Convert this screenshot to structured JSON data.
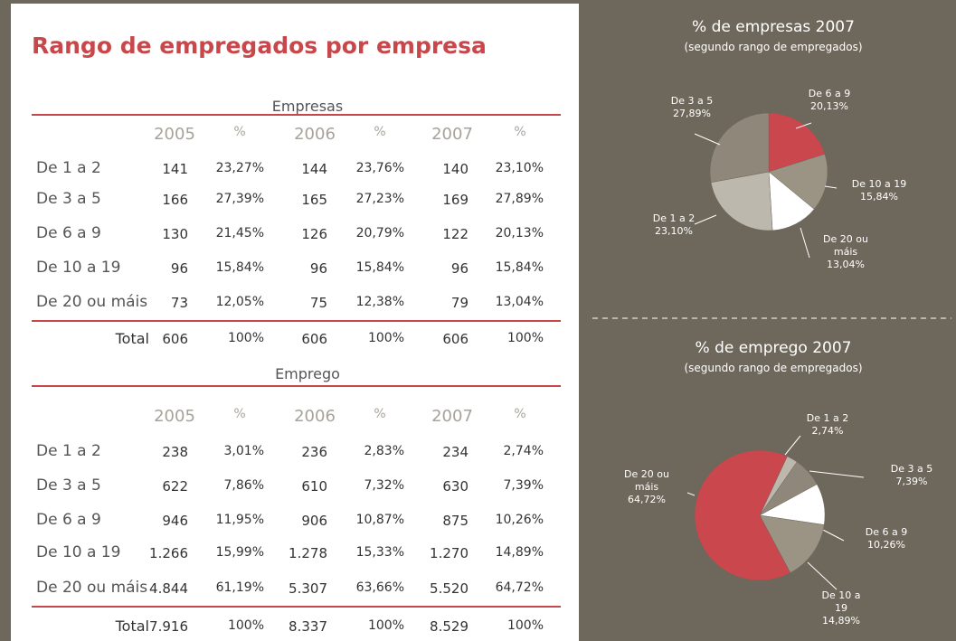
{
  "title": "Rango de empregados por empresa",
  "tables": [
    {
      "title": "Empresas",
      "header": [
        "2005",
        "%",
        "2006",
        "%",
        "2007",
        "%"
      ],
      "rows": [
        [
          "De 1 a 2",
          "141",
          "23,27%",
          "144",
          "23,76%",
          "140",
          "23,10%"
        ],
        [
          "De 3 a 5",
          "166",
          "27,39%",
          "165",
          "27,23%",
          "169",
          "27,89%"
        ],
        [
          "De 6 a 9",
          "130",
          "21,45%",
          "126",
          "20,79%",
          "122",
          "20,13%"
        ],
        [
          "De 10 a 19",
          "96",
          "15,84%",
          "96",
          "15,84%",
          "96",
          "15,84%"
        ],
        [
          "De 20 ou máis",
          "73",
          "12,05%",
          "75",
          "12,38%",
          "79",
          "13,04%"
        ]
      ],
      "total": [
        "Total",
        "606",
        "100%",
        "606",
        "100%",
        "606",
        "100%"
      ]
    },
    {
      "title": "Emprego",
      "header": [
        "2005",
        "%",
        "2006",
        "%",
        "2007",
        "%"
      ],
      "rows": [
        [
          "De 1 a 2",
          "238",
          "3,01%",
          "236",
          "2,83%",
          "234",
          "2,74%"
        ],
        [
          "De 3 a 5",
          "622",
          "7,86%",
          "610",
          "7,32%",
          "630",
          "7,39%"
        ],
        [
          "De 6 a 9",
          "946",
          "11,95%",
          "906",
          "10,87%",
          "875",
          "10,26%"
        ],
        [
          "De 10 a 19",
          "1.266",
          "15,99%",
          "1.278",
          "15,33%",
          "1.270",
          "14,89%"
        ],
        [
          "De 20 ou máis",
          "4.844",
          "61,19%",
          "5.307",
          "63,66%",
          "5.520",
          "64,72%"
        ]
      ],
      "total": [
        "Total",
        "7.916",
        "100%",
        "8.337",
        "100%",
        "8.529",
        "100%"
      ]
    }
  ],
  "chart_data": [
    {
      "type": "pie",
      "title": "% de empresas 2007",
      "subtitle": "(segundo rango de empregados)",
      "categories": [
        "De 6 a 9",
        "De 10 a 19",
        "De 20 ou máis",
        "De 1 a 2",
        "De 3 a 5"
      ],
      "values": [
        20.13,
        15.84,
        13.04,
        23.1,
        27.89
      ],
      "value_labels": [
        "20,13%",
        "15,84%",
        "13,04%",
        "23,10%",
        "27,89%"
      ],
      "colors": [
        "#c9474d",
        "#9b9485",
        "#ffffff",
        "#bdb8ad",
        "#8f877a"
      ]
    },
    {
      "type": "pie",
      "title": "% de emprego 2007",
      "subtitle": "(segundo rango de empregados)",
      "categories": [
        "De 1 a 2",
        "De 3 a 5",
        "De 6 a 9",
        "De 10 a 19",
        "De 20 ou máis"
      ],
      "values": [
        2.74,
        7.39,
        10.26,
        14.89,
        64.72
      ],
      "value_labels": [
        "2,74%",
        "7,39%",
        "10,26%",
        "14,89%",
        "64,72%"
      ],
      "colors": [
        "#bdb8ad",
        "#8f877a",
        "#ffffff",
        "#9b9485",
        "#c9474d"
      ]
    }
  ]
}
